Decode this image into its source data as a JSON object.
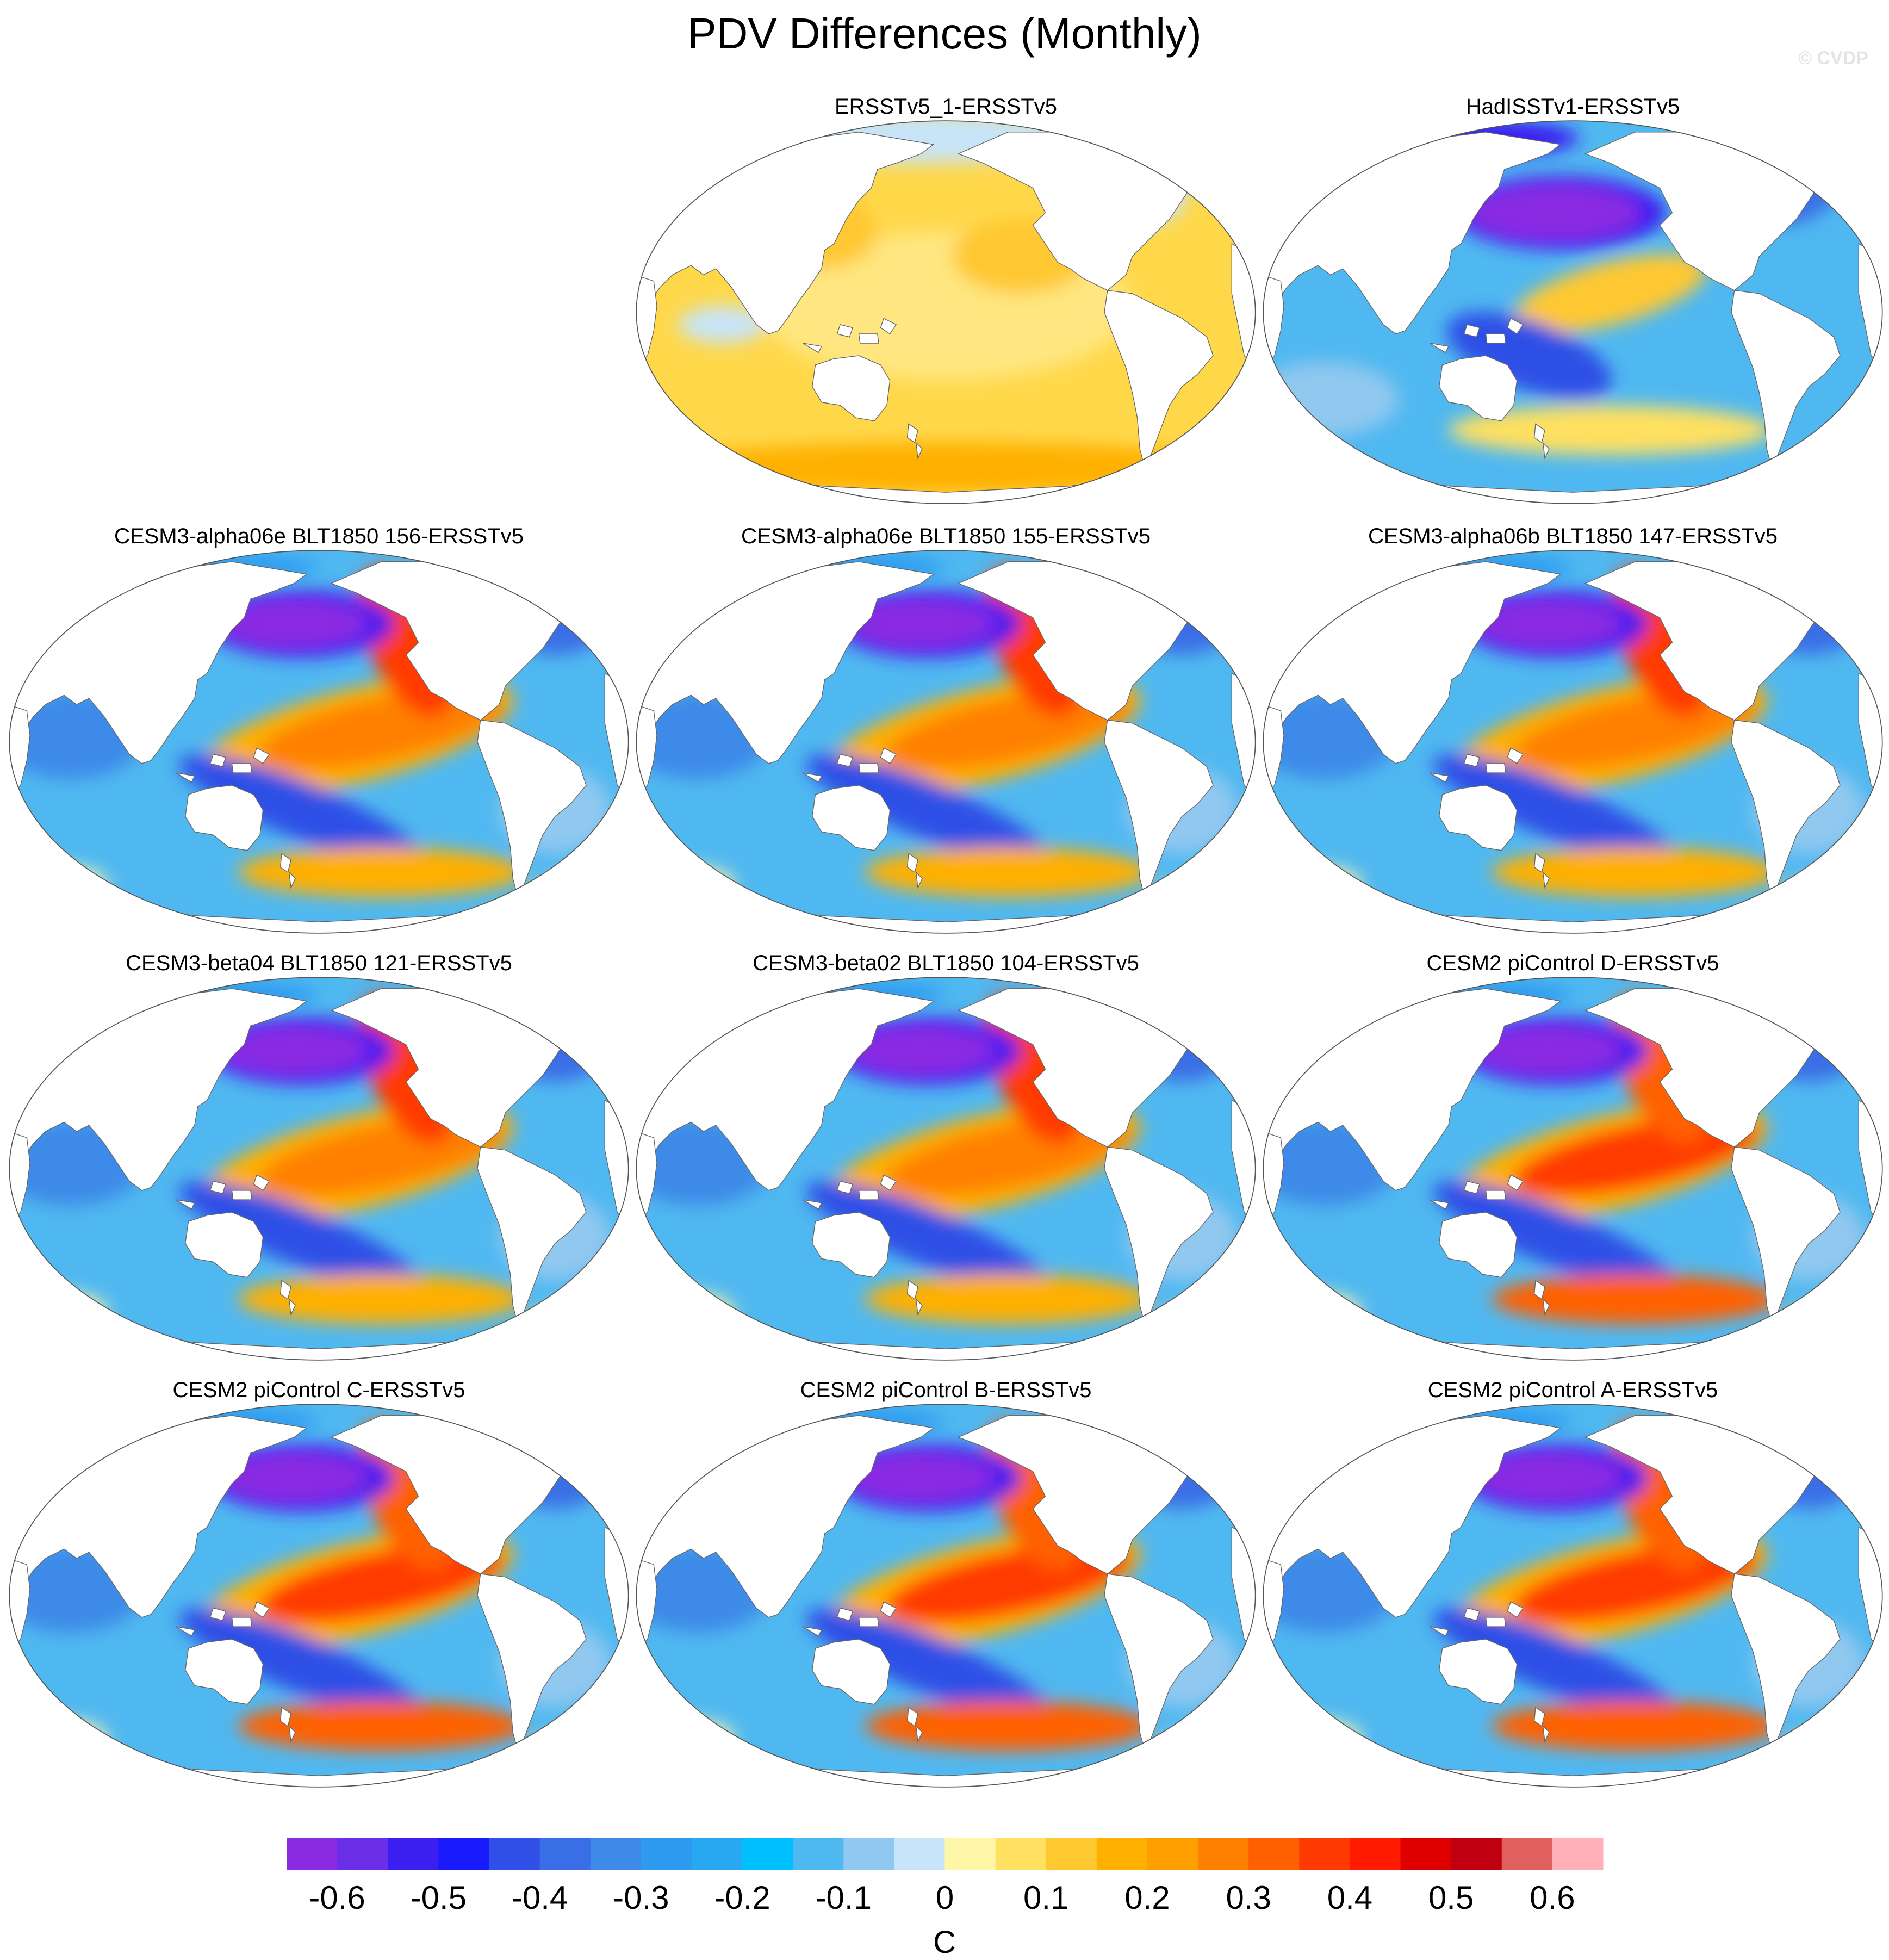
{
  "title": "PDV Differences (Monthly)",
  "watermark": "© CVDP",
  "panels": [
    {
      "row": 0,
      "col": 1,
      "title": "ERSSTv5_1-ERSSTv5",
      "pattern": "warm_uniform"
    },
    {
      "row": 0,
      "col": 2,
      "title": "HadISSTv1-ERSSTv5",
      "pattern": "weak_pdv_negative"
    },
    {
      "row": 1,
      "col": 0,
      "title": "CESM3-alpha06e BLT1850 156-ERSSTv5",
      "pattern": "pdv"
    },
    {
      "row": 1,
      "col": 1,
      "title": "CESM3-alpha06e BLT1850 155-ERSSTv5",
      "pattern": "pdv"
    },
    {
      "row": 1,
      "col": 2,
      "title": "CESM3-alpha06b BLT1850 147-ERSSTv5",
      "pattern": "pdv"
    },
    {
      "row": 2,
      "col": 0,
      "title": "CESM3-beta04 BLT1850 121-ERSSTv5",
      "pattern": "pdv"
    },
    {
      "row": 2,
      "col": 1,
      "title": "CESM3-beta02 BLT1850 104-ERSSTv5",
      "pattern": "pdv"
    },
    {
      "row": 2,
      "col": 2,
      "title": "CESM2 piControl D-ERSSTv5",
      "pattern": "pdv_strong"
    },
    {
      "row": 3,
      "col": 0,
      "title": "CESM2 piControl C-ERSSTv5",
      "pattern": "pdv_strong"
    },
    {
      "row": 3,
      "col": 1,
      "title": "CESM2 piControl B-ERSSTv5",
      "pattern": "pdv_strong"
    },
    {
      "row": 3,
      "col": 2,
      "title": "CESM2 piControl A-ERSSTv5",
      "pattern": "pdv_strong"
    }
  ],
  "colorbar": {
    "units": "C",
    "colors": [
      "#8a2be2",
      "#6a2ee6",
      "#3a1ff0",
      "#1a1aff",
      "#2f4fe6",
      "#3a6ee6",
      "#3d8ae8",
      "#2e9bf0",
      "#28a8f0",
      "#00bfff",
      "#50b8f0",
      "#90c8f0",
      "#c8e4f8",
      "#fff7a8",
      "#ffe060",
      "#ffc830",
      "#ffb000",
      "#ffa000",
      "#ff8000",
      "#ff6000",
      "#ff3a00",
      "#ff1a00",
      "#e00000",
      "#c00010",
      "#e06060",
      "#ffb0b8"
    ],
    "tick_labels": [
      "-0.6",
      "-0.5",
      "-0.4",
      "-0.3",
      "-0.2",
      "-0.1",
      "0",
      "0.1",
      "0.2",
      "0.3",
      "0.4",
      "0.5",
      "0.6"
    ]
  }
}
